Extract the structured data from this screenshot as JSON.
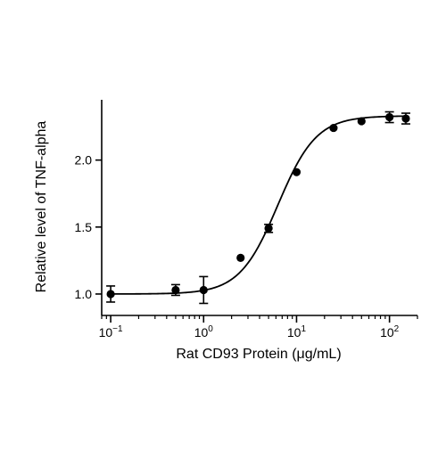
{
  "chart_data": {
    "type": "scatter",
    "title": "",
    "xlabel": "Rat CD93 Protein (μg/mL)",
    "ylabel": "Relative level of TNF-alpha",
    "x_scale": "log",
    "xlim": [
      0.08,
      200
    ],
    "ylim": [
      0.84,
      2.45
    ],
    "x_ticks": [
      {
        "value": 0.1,
        "base": "10",
        "exp": "−1"
      },
      {
        "value": 1,
        "base": "10",
        "exp": "0"
      },
      {
        "value": 10,
        "base": "10",
        "exp": "1"
      },
      {
        "value": 100,
        "base": "10",
        "exp": "2"
      }
    ],
    "y_ticks": [
      {
        "value": 1.0,
        "label": "1.0"
      },
      {
        "value": 1.5,
        "label": "1.5"
      },
      {
        "value": 2.0,
        "label": "2.0"
      }
    ],
    "grid": false,
    "series": [
      {
        "points": [
          {
            "x": 0.1,
            "y": 1.0,
            "err": 0.06
          },
          {
            "x": 0.5,
            "y": 1.03,
            "err": 0.04
          },
          {
            "x": 1.0,
            "y": 1.03,
            "err": 0.1
          },
          {
            "x": 2.5,
            "y": 1.27,
            "err": 0
          },
          {
            "x": 5.0,
            "y": 1.49,
            "err": 0.03
          },
          {
            "x": 10.0,
            "y": 1.91,
            "err": 0
          },
          {
            "x": 25.0,
            "y": 2.24,
            "err": 0
          },
          {
            "x": 50.0,
            "y": 2.29,
            "err": 0
          },
          {
            "x": 100.0,
            "y": 2.32,
            "err": 0.04
          },
          {
            "x": 150.0,
            "y": 2.31,
            "err": 0.04
          }
        ]
      }
    ],
    "fit": {
      "bottom": 1.0,
      "top": 2.33,
      "ec50": 6.3,
      "hill": 2.1
    },
    "colors": {
      "marker": "#000000",
      "line": "#000000"
    }
  }
}
